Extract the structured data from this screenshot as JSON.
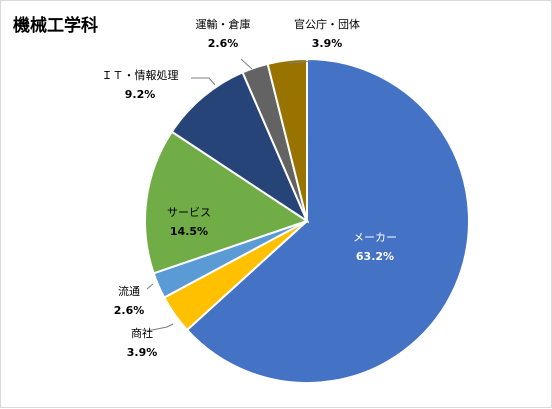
{
  "chart_data": {
    "type": "pie",
    "title": "機械工学科",
    "slices": [
      {
        "label": "メーカー",
        "value": 63.2,
        "value_label": "63.2%",
        "color": "#4472C4"
      },
      {
        "label": "商社",
        "value": 3.9,
        "value_label": "3.9%",
        "color": "#FFC000"
      },
      {
        "label": "流通",
        "value": 2.6,
        "value_label": "2.6%",
        "color": "#5B9BD5"
      },
      {
        "label": "サービス",
        "value": 14.5,
        "value_label": "14.5%",
        "color": "#70AD47"
      },
      {
        "label": "ＩＴ・情報処理",
        "value": 9.2,
        "value_label": "9.2%",
        "color": "#264478"
      },
      {
        "label": "運輸・倉庫",
        "value": 2.6,
        "value_label": "2.6%",
        "color": "#636363"
      },
      {
        "label": "官公庁・団体",
        "value": 3.9,
        "value_label": "3.9%",
        "color": "#997300"
      }
    ],
    "legend": "none"
  }
}
